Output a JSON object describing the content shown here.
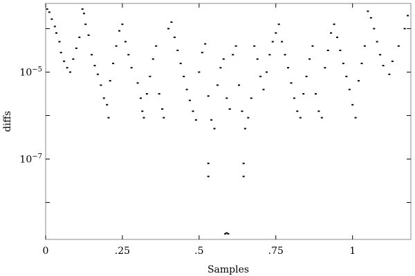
{
  "chart_data": {
    "type": "scatter",
    "title": "",
    "xlabel": "Samples",
    "ylabel": "diffs",
    "xlim": [
      0,
      1.19
    ],
    "ylim_log10": [
      -8.85,
      -3.42
    ],
    "yscale": "log",
    "grid": false,
    "legend": "none",
    "marker_color": "#000000",
    "x_ticks": [
      {
        "value": 0,
        "label": "0"
      },
      {
        "value": 0.25,
        "label": ".25"
      },
      {
        "value": 0.5,
        "label": ".5"
      },
      {
        "value": 0.75,
        "label": ".75"
      },
      {
        "value": 1,
        "label": "1"
      }
    ],
    "y_ticks": [
      {
        "log10": -5,
        "base": "10",
        "exp": "−5"
      },
      {
        "log10": -7,
        "base": "10",
        "exp": "−7"
      }
    ],
    "y_minor_ticks_log10": [
      -4,
      -6,
      -8
    ],
    "series": [
      {
        "points": [
          [
            0.005,
            -3.55
          ],
          [
            0.012,
            -3.62
          ],
          [
            0.02,
            -3.78
          ],
          [
            0.03,
            -3.95
          ],
          [
            0.035,
            -4.1
          ],
          [
            0.045,
            -4.3
          ],
          [
            0.05,
            -4.55
          ],
          [
            0.06,
            -4.75
          ],
          [
            0.07,
            -4.9
          ],
          [
            0.08,
            -5.0
          ],
          [
            0.09,
            -4.7
          ],
          [
            0.1,
            -4.45
          ],
          [
            0.11,
            -4.2
          ],
          [
            0.12,
            -3.55
          ],
          [
            0.125,
            -3.65
          ],
          [
            0.13,
            -3.9
          ],
          [
            0.14,
            -4.15
          ],
          [
            0.15,
            -4.6
          ],
          [
            0.16,
            -4.85
          ],
          [
            0.17,
            -5.05
          ],
          [
            0.18,
            -5.3
          ],
          [
            0.19,
            -5.6
          ],
          [
            0.2,
            -5.75
          ],
          [
            0.205,
            -6.05
          ],
          [
            0.21,
            -5.2
          ],
          [
            0.22,
            -4.8
          ],
          [
            0.23,
            -4.4
          ],
          [
            0.24,
            -4.05
          ],
          [
            0.25,
            -3.9
          ],
          [
            0.26,
            -4.3
          ],
          [
            0.27,
            -4.6
          ],
          [
            0.28,
            -4.9
          ],
          [
            0.3,
            -5.25
          ],
          [
            0.31,
            -5.6
          ],
          [
            0.315,
            -5.9
          ],
          [
            0.32,
            -6.05
          ],
          [
            0.33,
            -5.5
          ],
          [
            0.34,
            -5.1
          ],
          [
            0.35,
            -4.7
          ],
          [
            0.36,
            -4.4
          ],
          [
            0.37,
            -5.5
          ],
          [
            0.38,
            -5.85
          ],
          [
            0.385,
            -6.05
          ],
          [
            0.4,
            -4.0
          ],
          [
            0.41,
            -3.85
          ],
          [
            0.42,
            -4.2
          ],
          [
            0.43,
            -4.5
          ],
          [
            0.44,
            -4.8
          ],
          [
            0.45,
            -5.1
          ],
          [
            0.46,
            -5.4
          ],
          [
            0.47,
            -5.65
          ],
          [
            0.48,
            -5.9
          ],
          [
            0.49,
            -6.1
          ],
          [
            0.5,
            -5.0
          ],
          [
            0.51,
            -4.55
          ],
          [
            0.52,
            -4.35
          ],
          [
            0.53,
            -5.55
          ],
          [
            0.54,
            -6.1
          ],
          [
            0.55,
            -6.3
          ],
          [
            0.56,
            -5.3
          ],
          [
            0.57,
            -4.9
          ],
          [
            0.58,
            -4.7
          ],
          [
            0.59,
            -5.6
          ],
          [
            0.6,
            -5.85
          ],
          [
            0.61,
            -4.6
          ],
          [
            0.62,
            -4.4
          ],
          [
            0.63,
            -5.3
          ],
          [
            0.64,
            -5.9
          ],
          [
            0.65,
            -6.3
          ],
          [
            0.66,
            -6.05
          ],
          [
            0.67,
            -5.6
          ],
          [
            0.68,
            -4.4
          ],
          [
            0.69,
            -4.7
          ],
          [
            0.7,
            -5.1
          ],
          [
            0.71,
            -5.4
          ],
          [
            0.72,
            -5.0
          ],
          [
            0.73,
            -4.6
          ],
          [
            0.74,
            -4.3
          ],
          [
            0.75,
            -4.1
          ],
          [
            0.76,
            -3.9
          ],
          [
            0.77,
            -4.3
          ],
          [
            0.78,
            -4.6
          ],
          [
            0.79,
            -4.9
          ],
          [
            0.8,
            -5.25
          ],
          [
            0.81,
            -5.6
          ],
          [
            0.82,
            -5.9
          ],
          [
            0.83,
            -6.05
          ],
          [
            0.84,
            -5.5
          ],
          [
            0.85,
            -5.1
          ],
          [
            0.86,
            -4.7
          ],
          [
            0.87,
            -4.4
          ],
          [
            0.88,
            -5.5
          ],
          [
            0.89,
            -5.9
          ],
          [
            0.9,
            -6.05
          ],
          [
            0.91,
            -4.9
          ],
          [
            0.92,
            -4.5
          ],
          [
            0.93,
            -4.1
          ],
          [
            0.94,
            -3.9
          ],
          [
            0.95,
            -4.2
          ],
          [
            0.96,
            -4.5
          ],
          [
            0.97,
            -4.8
          ],
          [
            0.98,
            -5.1
          ],
          [
            0.99,
            -5.4
          ],
          [
            1.0,
            -5.75
          ],
          [
            1.01,
            -6.05
          ],
          [
            1.02,
            -5.2
          ],
          [
            1.03,
            -4.8
          ],
          [
            1.04,
            -4.4
          ],
          [
            1.05,
            -3.6
          ],
          [
            1.06,
            -3.75
          ],
          [
            1.07,
            -4.0
          ],
          [
            1.08,
            -4.3
          ],
          [
            1.09,
            -4.6
          ],
          [
            1.1,
            -4.85
          ],
          [
            1.12,
            -5.05
          ],
          [
            1.13,
            -4.75
          ],
          [
            1.15,
            -4.4
          ],
          [
            1.17,
            -4.0
          ],
          [
            1.18,
            -3.7
          ],
          [
            0.53,
            -7.1
          ],
          [
            0.53,
            -7.4
          ],
          [
            0.645,
            -7.1
          ],
          [
            0.645,
            -7.4
          ],
          [
            0.59,
            -8.7
          ],
          [
            0.585,
            -8.72
          ],
          [
            0.595,
            -8.72
          ]
        ]
      }
    ]
  }
}
